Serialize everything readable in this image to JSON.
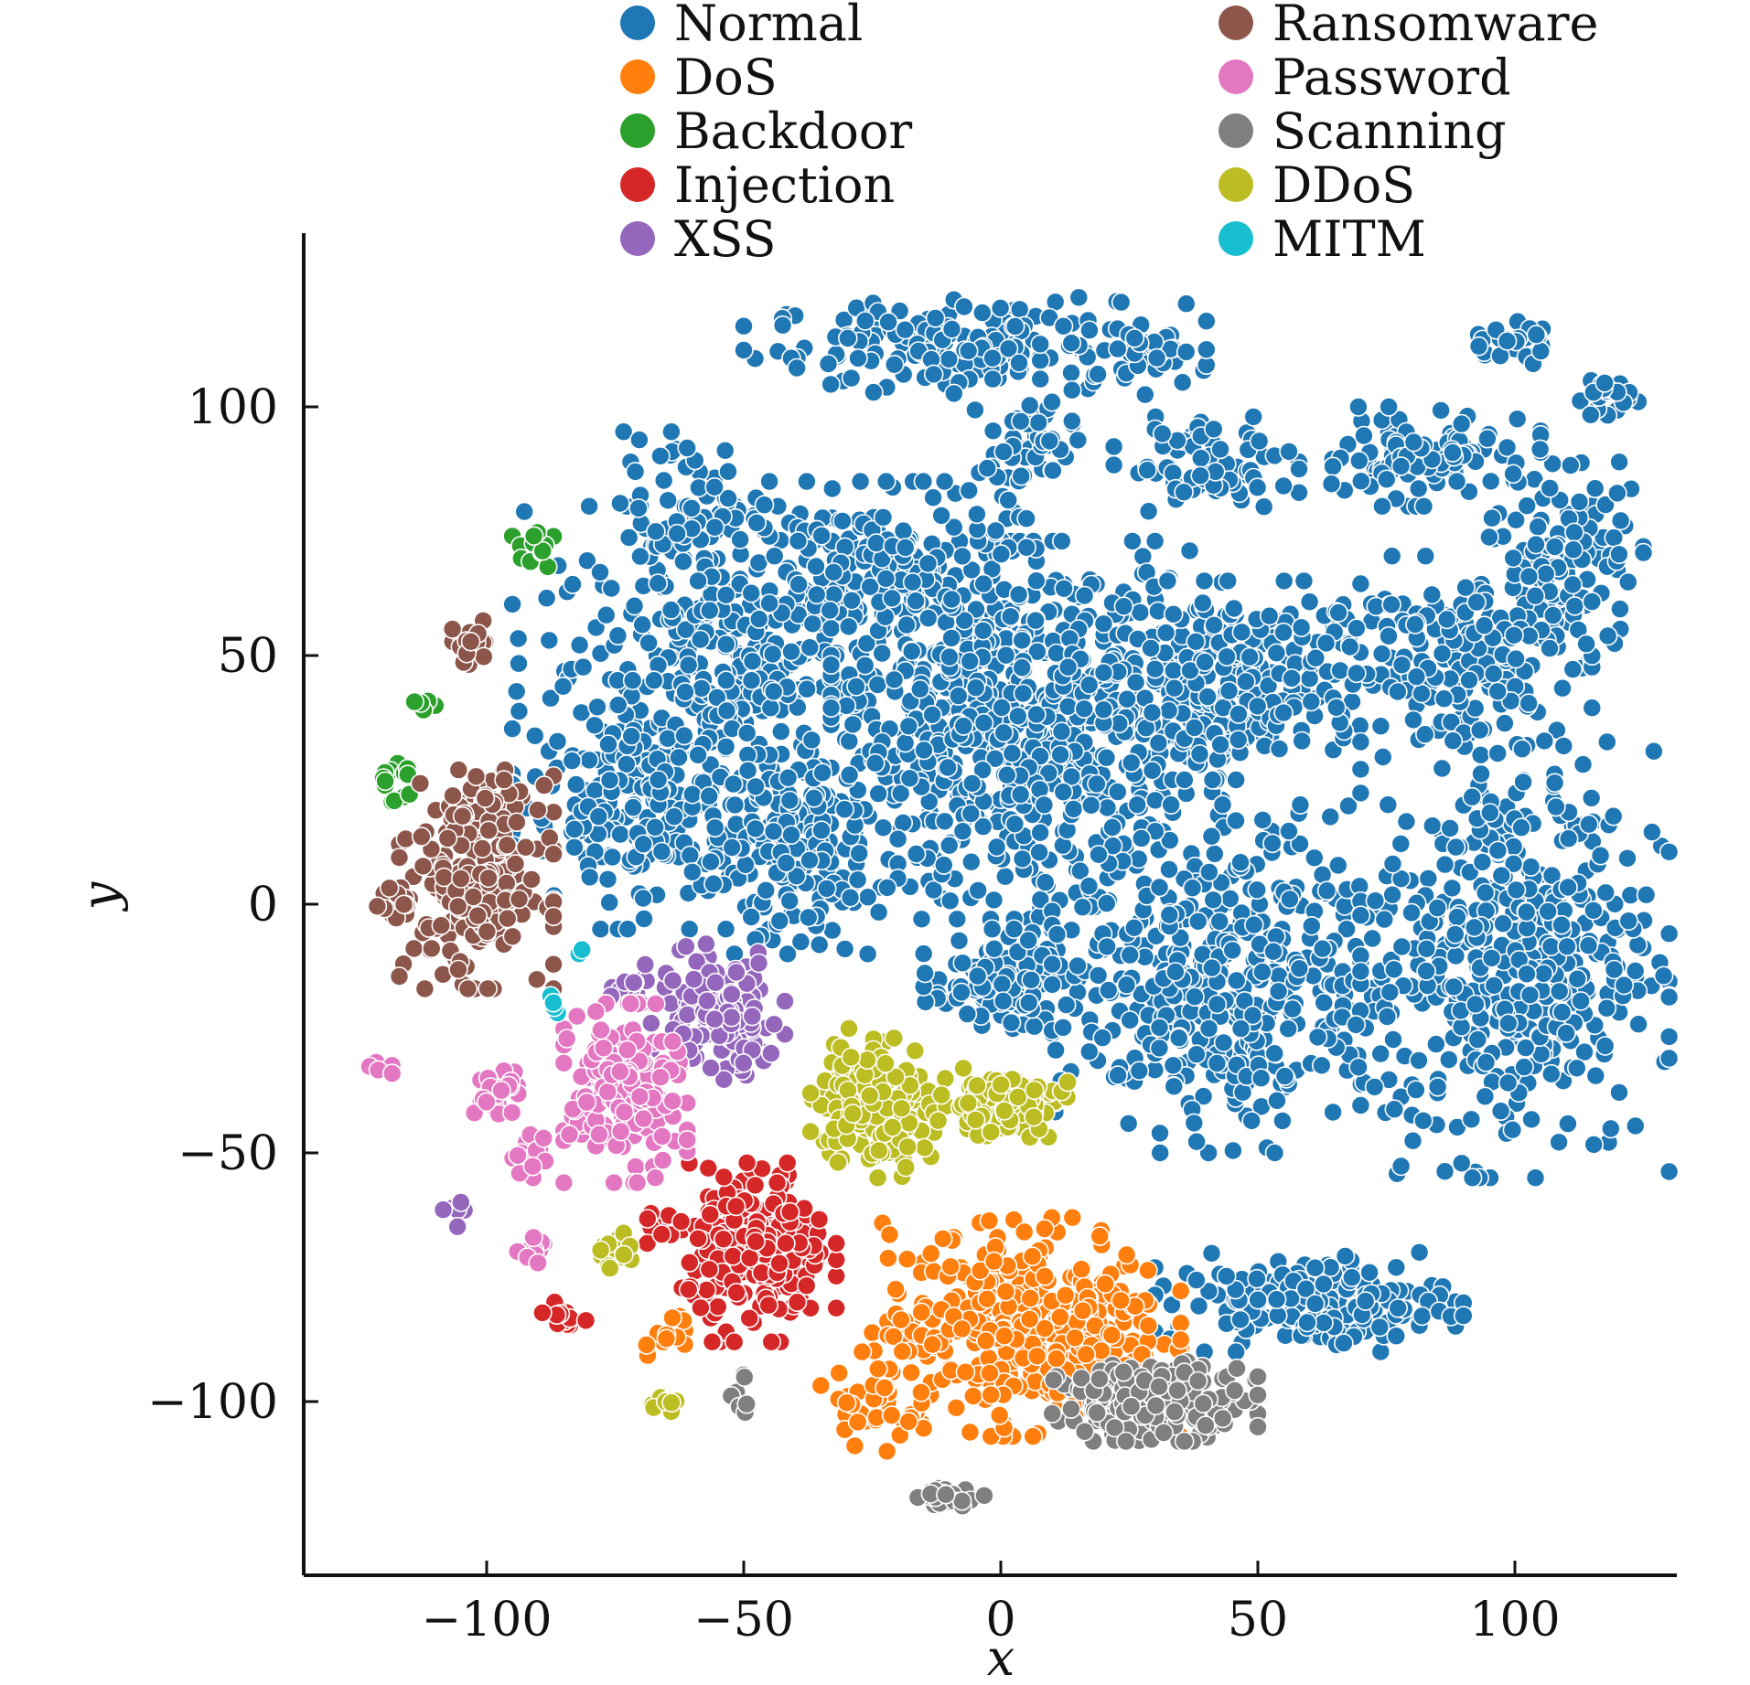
{
  "chart_data": {
    "type": "scatter",
    "title": "",
    "xlabel": "x",
    "ylabel": "y",
    "xlim": [
      -135,
      133
    ],
    "ylim": [
      -135,
      134
    ],
    "xticks": [
      -100,
      -50,
      0,
      50,
      100
    ],
    "xtick_labels": [
      "−100",
      "−50",
      "0",
      "50",
      "100"
    ],
    "yticks": [
      -100,
      -50,
      0,
      50,
      100
    ],
    "ytick_labels": [
      "−100",
      "−50",
      "0",
      "50",
      "100"
    ],
    "grid": false,
    "legend_position": "top",
    "series": [
      {
        "name": "Normal",
        "color": "#1f77b4",
        "clusters": [
          {
            "cx": -5,
            "cy": 112,
            "rx": 45,
            "ry": 10,
            "n": 180
          },
          {
            "cx": 30,
            "cy": 112,
            "rx": 8,
            "ry": 5,
            "n": 30
          },
          {
            "cx": 98,
            "cy": 113,
            "rx": 8,
            "ry": 5,
            "n": 25
          },
          {
            "cx": 118,
            "cy": 102,
            "rx": 6,
            "ry": 5,
            "n": 20
          },
          {
            "cx": 5,
            "cy": 92,
            "rx": 10,
            "ry": 10,
            "n": 50
          },
          {
            "cx": 40,
            "cy": 88,
            "rx": 18,
            "ry": 10,
            "n": 80
          },
          {
            "cx": 80,
            "cy": 90,
            "rx": 25,
            "ry": 10,
            "n": 100
          },
          {
            "cx": 110,
            "cy": 70,
            "rx": 15,
            "ry": 22,
            "n": 120
          },
          {
            "cx": -50,
            "cy": 50,
            "rx": 45,
            "ry": 30,
            "n": 380
          },
          {
            "cx": 5,
            "cy": 35,
            "rx": 38,
            "ry": 38,
            "n": 700
          },
          {
            "cx": 45,
            "cy": 45,
            "rx": 25,
            "ry": 20,
            "n": 220
          },
          {
            "cx": 85,
            "cy": 50,
            "rx": 30,
            "ry": 20,
            "n": 200
          },
          {
            "cx": -20,
            "cy": 70,
            "rx": 25,
            "ry": 15,
            "n": 150
          },
          {
            "cx": -70,
            "cy": 20,
            "rx": 25,
            "ry": 25,
            "n": 200
          },
          {
            "cx": -40,
            "cy": 10,
            "rx": 20,
            "ry": 20,
            "n": 180
          },
          {
            "cx": 0,
            "cy": -15,
            "rx": 15,
            "ry": 10,
            "n": 100
          },
          {
            "cx": 45,
            "cy": -15,
            "rx": 35,
            "ry": 35,
            "n": 450
          },
          {
            "cx": 100,
            "cy": -10,
            "rx": 30,
            "ry": 45,
            "n": 450
          },
          {
            "cx": 60,
            "cy": -80,
            "rx": 30,
            "ry": 10,
            "n": 180
          },
          {
            "cx": -60,
            "cy": 80,
            "rx": 15,
            "ry": 15,
            "n": 60
          }
        ]
      },
      {
        "name": "DoS",
        "color": "#ff7f0e",
        "clusters": [
          {
            "cx": 5,
            "cy": -85,
            "rx": 30,
            "ry": 22,
            "n": 380
          },
          {
            "cx": -25,
            "cy": -100,
            "rx": 10,
            "ry": 10,
            "n": 40
          },
          {
            "cx": -65,
            "cy": -85,
            "rx": 6,
            "ry": 6,
            "n": 12
          }
        ]
      },
      {
        "name": "Backdoor",
        "color": "#2ca02c",
        "clusters": [
          {
            "cx": -91,
            "cy": 72,
            "rx": 4,
            "ry": 5,
            "n": 15
          },
          {
            "cx": -113,
            "cy": 40,
            "rx": 3,
            "ry": 2,
            "n": 6
          },
          {
            "cx": -118,
            "cy": 25,
            "rx": 4,
            "ry": 5,
            "n": 14
          }
        ]
      },
      {
        "name": "Injection",
        "color": "#d62728",
        "clusters": [
          {
            "cx": -47,
            "cy": -70,
            "rx": 15,
            "ry": 18,
            "n": 220
          },
          {
            "cx": -85,
            "cy": -83,
            "rx": 6,
            "ry": 3,
            "n": 12
          },
          {
            "cx": -65,
            "cy": -65,
            "rx": 5,
            "ry": 4,
            "n": 10
          }
        ]
      },
      {
        "name": "XSS",
        "color": "#9467bd",
        "clusters": [
          {
            "cx": -55,
            "cy": -22,
            "rx": 13,
            "ry": 14,
            "n": 150
          },
          {
            "cx": -72,
            "cy": -15,
            "rx": 6,
            "ry": 5,
            "n": 18
          },
          {
            "cx": -105,
            "cy": -62,
            "rx": 4,
            "ry": 4,
            "n": 8
          }
        ]
      },
      {
        "name": "Ransomware",
        "color": "#8c564b",
        "clusters": [
          {
            "cx": -102,
            "cy": 5,
            "rx": 15,
            "ry": 22,
            "n": 220
          },
          {
            "cx": -103,
            "cy": 52,
            "rx": 5,
            "ry": 5,
            "n": 25
          },
          {
            "cx": -118,
            "cy": 0,
            "rx": 4,
            "ry": 4,
            "n": 20
          }
        ]
      },
      {
        "name": "Password",
        "color": "#e377c2",
        "clusters": [
          {
            "cx": -73,
            "cy": -38,
            "rx": 12,
            "ry": 18,
            "n": 200
          },
          {
            "cx": -98,
            "cy": -38,
            "rx": 5,
            "ry": 5,
            "n": 30
          },
          {
            "cx": -92,
            "cy": -50,
            "rx": 4,
            "ry": 5,
            "n": 18
          },
          {
            "cx": -90,
            "cy": -70,
            "rx": 4,
            "ry": 3,
            "n": 12
          },
          {
            "cx": -120,
            "cy": -33,
            "rx": 3,
            "ry": 2,
            "n": 6
          }
        ]
      },
      {
        "name": "Scanning",
        "color": "#7f7f7f",
        "clusters": [
          {
            "cx": 30,
            "cy": -100,
            "rx": 20,
            "ry": 8,
            "n": 220
          },
          {
            "cx": -10,
            "cy": -119,
            "rx": 8,
            "ry": 2,
            "n": 25
          },
          {
            "cx": -50,
            "cy": -100,
            "rx": 4,
            "ry": 6,
            "n": 8
          }
        ]
      },
      {
        "name": "DDoS",
        "color": "#bcbd22",
        "clusters": [
          {
            "cx": -25,
            "cy": -40,
            "rx": 12,
            "ry": 15,
            "n": 160
          },
          {
            "cx": 0,
            "cy": -40,
            "rx": 13,
            "ry": 7,
            "n": 110
          },
          {
            "cx": -75,
            "cy": -70,
            "rx": 5,
            "ry": 4,
            "n": 14
          },
          {
            "cx": -65,
            "cy": -100,
            "rx": 5,
            "ry": 2,
            "n": 10
          }
        ]
      },
      {
        "name": "MITM",
        "color": "#17becf",
        "clusters": [
          {
            "cx": -88,
            "cy": -20,
            "rx": 2,
            "ry": 4,
            "n": 4
          },
          {
            "cx": -82,
            "cy": -10,
            "rx": 2,
            "ry": 2,
            "n": 2
          }
        ]
      }
    ]
  }
}
